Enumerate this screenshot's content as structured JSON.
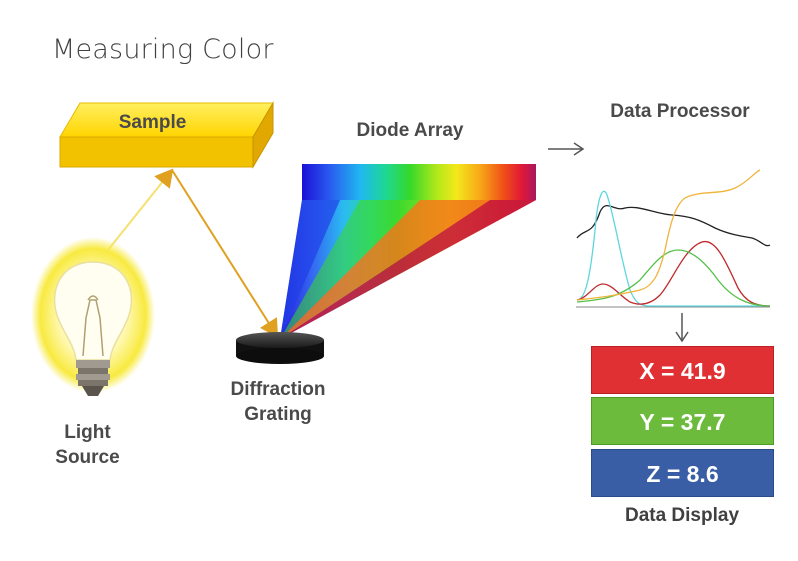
{
  "title": "Measuring Color",
  "labels": {
    "sample": "Sample",
    "diode_array": "Diode Array",
    "data_processor": "Data Processor",
    "diffraction_grating": "Diffraction\nGrating",
    "light_source": "Light\nSource",
    "data_display": "Data Display"
  },
  "readouts": {
    "x": "X = 41.9",
    "y": "Y = 37.7",
    "z": "Z = 8.6"
  },
  "colors": {
    "sample_yellow": "#f5c800",
    "beam": "#e8b830",
    "x_box": "#e03033",
    "y_box": "#6cbb3c",
    "z_box": "#3a5ea6",
    "curve_cyan": "#5fd6df",
    "curve_red": "#c0282a",
    "curve_green": "#55c04a",
    "curve_orange": "#f0b43a",
    "curve_black": "#222222"
  },
  "icons": {
    "light": "light-bulb-icon",
    "grating": "diffraction-grating-icon",
    "arrow_right": "arrow-right-icon",
    "arrow_down": "arrow-down-icon"
  }
}
